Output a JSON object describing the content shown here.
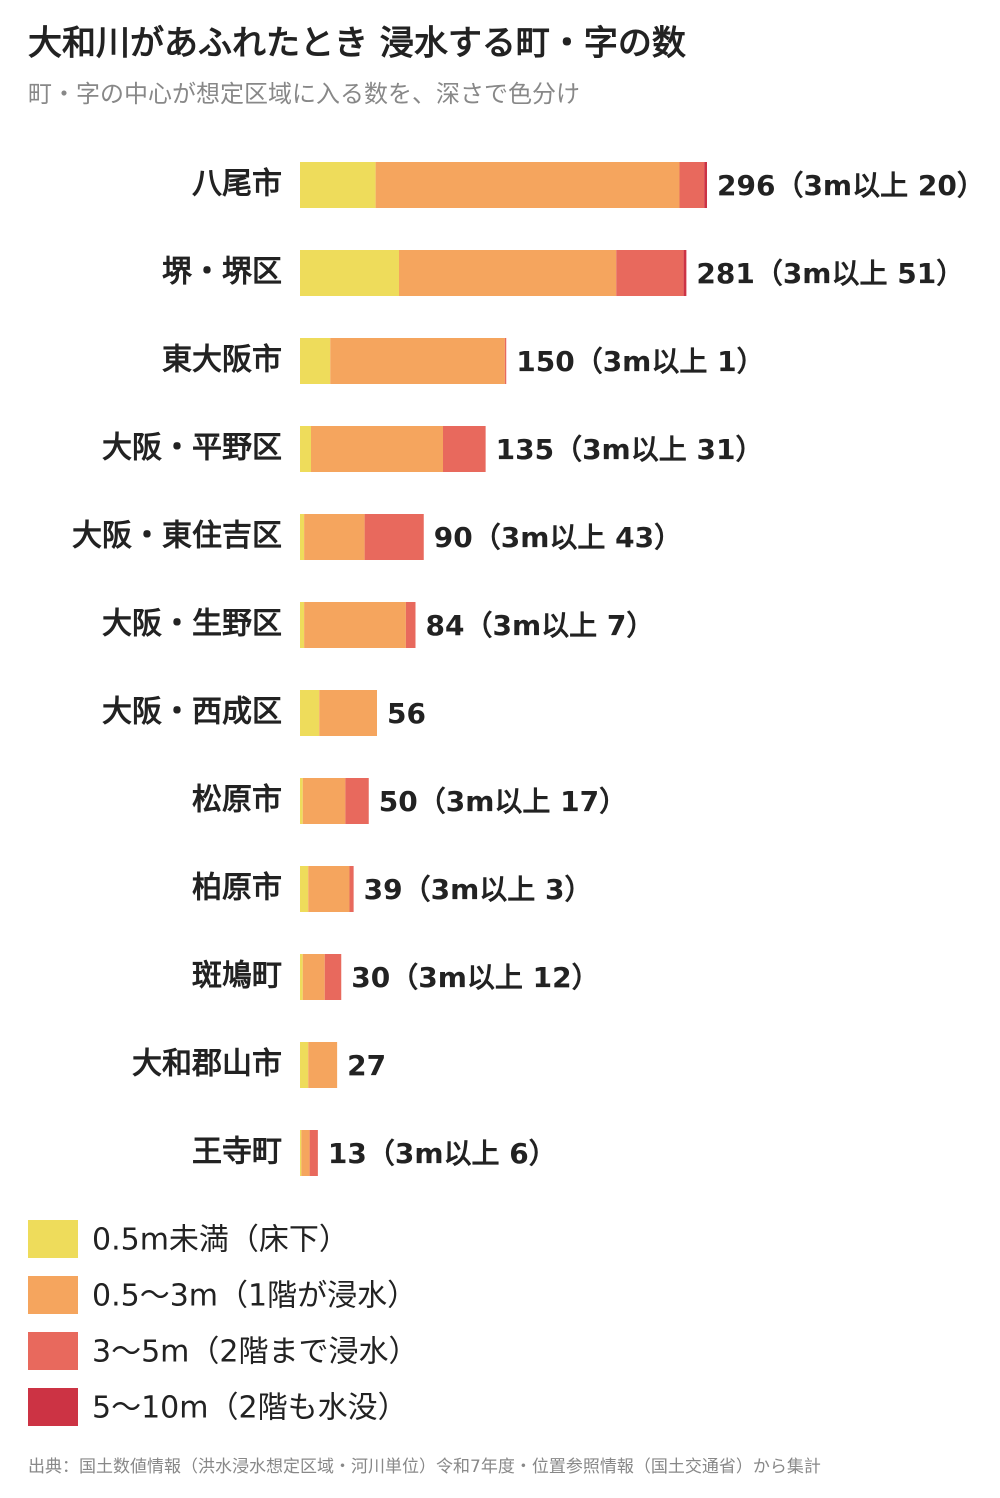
{
  "chart_data": {
    "type": "stacked-bar-horizontal",
    "title": "大和川があふれたとき 浸水する町・字の数",
    "subtitle": "町・字の中心が想定区域に入る数を、深さで色分け",
    "categories": [
      "八尾市",
      "堺・堺区",
      "東大阪市",
      "大阪・平野区",
      "大阪・東住吉区",
      "大阪・生野区",
      "大阪・西成区",
      "松原市",
      "柏原市",
      "斑鳩町",
      "大和郡山市",
      "王寺町"
    ],
    "series": [
      {
        "name": "0.5m未満（床下）",
        "color": "#eedc5b",
        "values": [
          55,
          72,
          22,
          8,
          3,
          3,
          14,
          2,
          6,
          2,
          6,
          1
        ]
      },
      {
        "name": "0.5〜3m（1階が浸水）",
        "color": "#f5a55e",
        "values": [
          221,
          158,
          127,
          96,
          44,
          74,
          42,
          31,
          30,
          16,
          21,
          6
        ]
      },
      {
        "name": "3〜5m（2階まで浸水）",
        "color": "#e8695d",
        "values": [
          18,
          49,
          1,
          31,
          43,
          7,
          0,
          17,
          3,
          12,
          0,
          6
        ]
      },
      {
        "name": "5〜10m（2階も水没）",
        "color": "#cc3344",
        "values": [
          2,
          2,
          0,
          0,
          0,
          0,
          0,
          0,
          0,
          0,
          0,
          0
        ]
      }
    ],
    "bar_labels": [
      "296（3m以上 20）",
      "281（3m以上 51）",
      "150（3m以上 1）",
      "135（3m以上 31）",
      "90（3m以上 43）",
      "84（3m以上 7）",
      "56",
      "50（3m以上 17）",
      "39（3m以上 3）",
      "30（3m以上 12）",
      "27",
      "13（3m以上 6）"
    ],
    "xlim": [
      0,
      300
    ],
    "source": "出典：国土数値情報（洪水浸水想定区域・河川単位）令和7年度・位置参照情報（国土交通省）から集計"
  }
}
